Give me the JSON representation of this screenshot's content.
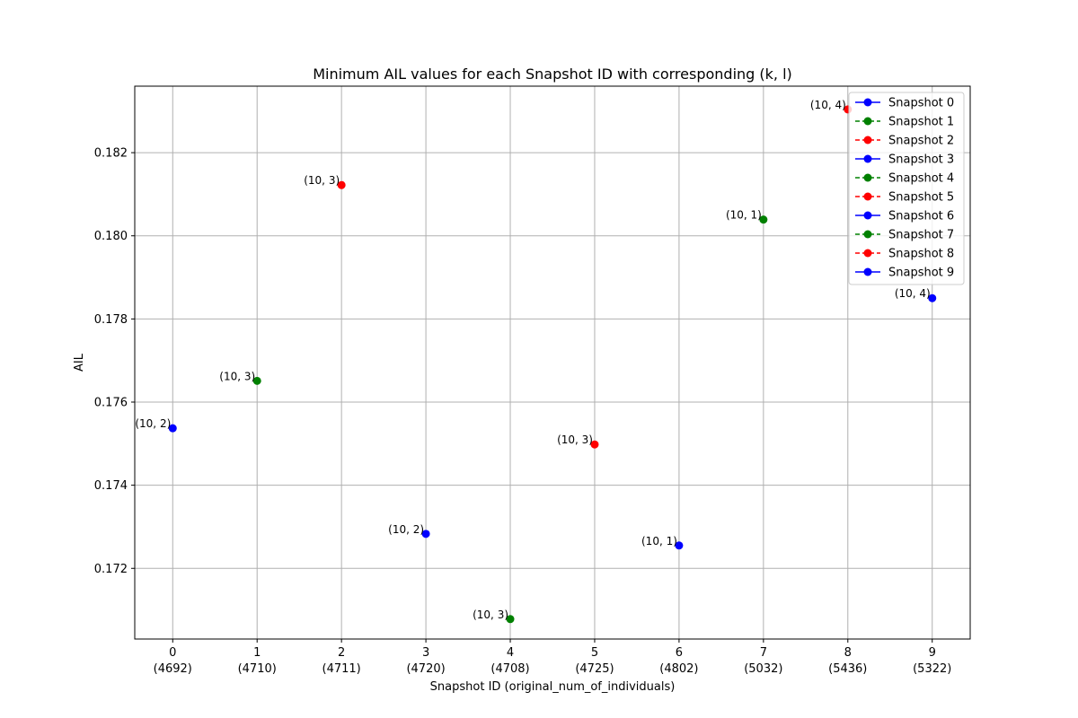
{
  "chart_data": {
    "type": "scatter",
    "title": "Minimum AIL values for each Snapshot ID with corresponding (k, l)",
    "xlabel": "Snapshot ID (original_num_of_individuals)",
    "ylabel": "AIL",
    "xlim": [
      -0.45,
      9.45
    ],
    "ylim": [
      0.1703,
      0.1836
    ],
    "y_ticks": [
      "0.172",
      "0.174",
      "0.176",
      "0.178",
      "0.180",
      "0.182"
    ],
    "grid": true,
    "legend_position": "top-right",
    "colors": {
      "blue": "#0000ff",
      "green": "#008000",
      "red": "#ff0000"
    },
    "series": [
      {
        "name": "Snapshot 0",
        "x": 0,
        "x_tick": "0",
        "x_sub": "(4692)",
        "y": 0.17537,
        "label": "(10, 2)",
        "color": "#0000ff",
        "line_style": "solid"
      },
      {
        "name": "Snapshot 1",
        "x": 1,
        "x_tick": "1",
        "x_sub": "(4710)",
        "y": 0.17651,
        "label": "(10, 3)",
        "color": "#008000",
        "line_style": "dashed"
      },
      {
        "name": "Snapshot 2",
        "x": 2,
        "x_tick": "2",
        "x_sub": "(4711)",
        "y": 0.18122,
        "label": "(10, 3)",
        "color": "#ff0000",
        "line_style": "dashed"
      },
      {
        "name": "Snapshot 3",
        "x": 3,
        "x_tick": "3",
        "x_sub": "(4720)",
        "y": 0.17283,
        "label": "(10, 2)",
        "color": "#0000ff",
        "line_style": "solid"
      },
      {
        "name": "Snapshot 4",
        "x": 4,
        "x_tick": "4",
        "x_sub": "(4708)",
        "y": 0.17078,
        "label": "(10, 3)",
        "color": "#008000",
        "line_style": "dashed"
      },
      {
        "name": "Snapshot 5",
        "x": 5,
        "x_tick": "5",
        "x_sub": "(4725)",
        "y": 0.17498,
        "label": "(10, 3)",
        "color": "#ff0000",
        "line_style": "dashed"
      },
      {
        "name": "Snapshot 6",
        "x": 6,
        "x_tick": "6",
        "x_sub": "(4802)",
        "y": 0.17255,
        "label": "(10, 1)",
        "color": "#0000ff",
        "line_style": "solid"
      },
      {
        "name": "Snapshot 7",
        "x": 7,
        "x_tick": "7",
        "x_sub": "(5032)",
        "y": 0.18039,
        "label": "(10, 1)",
        "color": "#008000",
        "line_style": "dashed"
      },
      {
        "name": "Snapshot 8",
        "x": 8,
        "x_tick": "8",
        "x_sub": "(5436)",
        "y": 0.18304,
        "label": "(10, 4)",
        "color": "#ff0000",
        "line_style": "dashed"
      },
      {
        "name": "Snapshot 9",
        "x": 9,
        "x_tick": "9",
        "x_sub": "(5322)",
        "y": 0.1785,
        "label": "(10, 4)",
        "color": "#0000ff",
        "line_style": "solid"
      }
    ]
  }
}
